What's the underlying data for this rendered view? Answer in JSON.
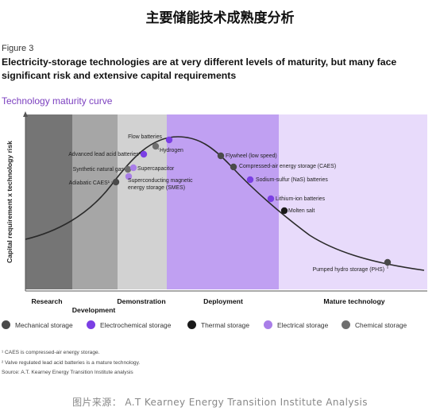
{
  "page_title": "主要储能技术成熟度分析",
  "figure_label": "Figure 3",
  "figure_heading": "Electricity-storage technologies are at very different levels of maturity, but many face significant risk and extensive capital requirements",
  "chart_subtitle": "Technology maturity curve",
  "colors": {
    "mechanical": "#4a4a4a",
    "electrochemical": "#7b3fe4",
    "thermal": "#1a1a1a",
    "electrical": "#a97ee8",
    "chemical": "#6e6e6e",
    "accent": "#7b3fbf",
    "band_research": "#757575",
    "band_development": "#a6a6a6",
    "band_demonstration": "#d2d2d2",
    "band_deployment": "#c0a0f2",
    "band_mature": "#e8dbfb"
  },
  "chart_data": {
    "type": "line",
    "title": "Technology maturity curve",
    "ylabel": "Capital requirement x technology risk",
    "xlabel": "",
    "grid": false,
    "legend_position": "bottom",
    "stages": [
      {
        "label": "Research",
        "key": "research"
      },
      {
        "label": "Development",
        "key": "development"
      },
      {
        "label": "Demonstration",
        "key": "demonstration"
      },
      {
        "label": "Deployment",
        "key": "deployment"
      },
      {
        "label": "Mature technology",
        "key": "mature"
      }
    ],
    "points": [
      {
        "label": "Adiabatic CAES¹",
        "category": "mechanical"
      },
      {
        "label": "Synthetic natural gas",
        "category": "chemical"
      },
      {
        "label": "Advanced lead acid batteries²",
        "category": "electrochemical"
      },
      {
        "label": "Superconducting magnetic energy storage (SMES)",
        "category": "electrical"
      },
      {
        "label": "Supercapacitor",
        "category": "electrical"
      },
      {
        "label": "Hydrogen",
        "category": "chemical"
      },
      {
        "label": "Flow batteries",
        "category": "electrochemical"
      },
      {
        "label": "Flywheel (low speed)",
        "category": "mechanical"
      },
      {
        "label": "Compressed-air energy storage (CAES)",
        "category": "mechanical"
      },
      {
        "label": "Sodium-sulfur (NaS) batteries",
        "category": "electrochemical"
      },
      {
        "label": "Lithium-ion batteries",
        "category": "electrochemical"
      },
      {
        "label": "Molten salt",
        "category": "thermal"
      },
      {
        "label": "Pumped hydro storage (PHS)",
        "category": "mechanical"
      }
    ]
  },
  "legend": [
    {
      "label": "Mechanical storage",
      "category": "mechanical"
    },
    {
      "label": "Electrochemical storage",
      "category": "electrochemical"
    },
    {
      "label": "Thermal storage",
      "category": "thermal"
    },
    {
      "label": "Electrical storage",
      "category": "electrical"
    },
    {
      "label": "Chemical storage",
      "category": "chemical"
    }
  ],
  "footnotes": {
    "note1": "¹ CAES is compressed-air energy storage.",
    "note2": "² Valve regulated lead acid batteries is a mature technology.",
    "source": "Source: A.T. Kearney Energy Transition Institute analysis"
  },
  "image_source": "图片来源： A.T Kearney Energy Transition Institute Analysis"
}
